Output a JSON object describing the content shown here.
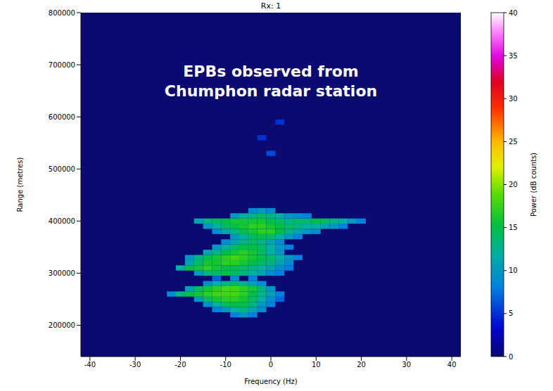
{
  "chart_data": {
    "type": "heatmap",
    "title": "Rx: 1",
    "annotation": [
      "EPBs observed from",
      "Chumphon radar station"
    ],
    "x_label": "Frequency (Hz)",
    "y_label": "Range (metres)",
    "xlim": [
      -42,
      42
    ],
    "xticks": [
      -40,
      -30,
      -20,
      -10,
      0,
      10,
      20,
      30,
      40
    ],
    "ylim": [
      140000,
      800000
    ],
    "yticks": [
      200000,
      300000,
      400000,
      500000,
      600000,
      700000,
      800000
    ],
    "grid": false,
    "color_label": "Power (dB counts)",
    "color_range": [
      0,
      40
    ],
    "color_ticks": [
      0,
      5,
      10,
      15,
      20,
      25,
      30,
      35,
      40
    ],
    "cells": [
      [
        -8,
        220000,
        8
      ],
      [
        -6,
        220000,
        10
      ],
      [
        -4,
        220000,
        8
      ],
      [
        -12,
        230000,
        8
      ],
      [
        -10,
        230000,
        10
      ],
      [
        -8,
        230000,
        12
      ],
      [
        -6,
        230000,
        13
      ],
      [
        -4,
        230000,
        11
      ],
      [
        -2,
        230000,
        9
      ],
      [
        -14,
        240000,
        9
      ],
      [
        -12,
        240000,
        12
      ],
      [
        -10,
        240000,
        14
      ],
      [
        -8,
        240000,
        15
      ],
      [
        -6,
        240000,
        15
      ],
      [
        -4,
        240000,
        13
      ],
      [
        -2,
        240000,
        10
      ],
      [
        0,
        240000,
        8
      ],
      [
        -16,
        250000,
        10
      ],
      [
        -14,
        250000,
        14
      ],
      [
        -12,
        250000,
        16
      ],
      [
        -10,
        250000,
        17
      ],
      [
        -8,
        250000,
        17
      ],
      [
        -6,
        250000,
        16
      ],
      [
        -4,
        250000,
        14
      ],
      [
        -2,
        250000,
        12
      ],
      [
        0,
        250000,
        9
      ],
      [
        2,
        250000,
        7
      ],
      [
        -22,
        260000,
        9
      ],
      [
        -20,
        260000,
        13
      ],
      [
        -18,
        260000,
        15
      ],
      [
        -16,
        260000,
        16
      ],
      [
        -14,
        260000,
        17
      ],
      [
        -12,
        260000,
        18
      ],
      [
        -10,
        260000,
        18
      ],
      [
        -8,
        260000,
        18
      ],
      [
        -6,
        260000,
        17
      ],
      [
        -4,
        260000,
        15
      ],
      [
        -2,
        260000,
        13
      ],
      [
        0,
        260000,
        11
      ],
      [
        2,
        260000,
        8
      ],
      [
        -18,
        270000,
        11
      ],
      [
        -16,
        270000,
        14
      ],
      [
        -14,
        270000,
        16
      ],
      [
        -12,
        270000,
        17
      ],
      [
        -10,
        270000,
        18
      ],
      [
        -8,
        270000,
        18
      ],
      [
        -6,
        270000,
        17
      ],
      [
        -4,
        270000,
        16
      ],
      [
        -2,
        270000,
        13
      ],
      [
        0,
        270000,
        10
      ],
      [
        -14,
        280000,
        9
      ],
      [
        -12,
        280000,
        12
      ],
      [
        -10,
        280000,
        13
      ],
      [
        -8,
        280000,
        14
      ],
      [
        -6,
        280000,
        13
      ],
      [
        -4,
        280000,
        11
      ],
      [
        -2,
        280000,
        9
      ],
      [
        -12,
        290000,
        7
      ],
      [
        -8,
        290000,
        9
      ],
      [
        -4,
        290000,
        8
      ],
      [
        -16,
        300000,
        10
      ],
      [
        -14,
        300000,
        13
      ],
      [
        -12,
        300000,
        14
      ],
      [
        -10,
        300000,
        15
      ],
      [
        -8,
        300000,
        14
      ],
      [
        -6,
        300000,
        13
      ],
      [
        -4,
        300000,
        12
      ],
      [
        -2,
        300000,
        11
      ],
      [
        0,
        300000,
        9
      ],
      [
        2,
        300000,
        8
      ],
      [
        -20,
        310000,
        12
      ],
      [
        -18,
        310000,
        15
      ],
      [
        -16,
        310000,
        16
      ],
      [
        -14,
        310000,
        17
      ],
      [
        -12,
        310000,
        16
      ],
      [
        -10,
        310000,
        15
      ],
      [
        -8,
        310000,
        15
      ],
      [
        -6,
        310000,
        14
      ],
      [
        -4,
        310000,
        13
      ],
      [
        -2,
        310000,
        12
      ],
      [
        0,
        310000,
        11
      ],
      [
        2,
        310000,
        9
      ],
      [
        4,
        310000,
        8
      ],
      [
        -18,
        320000,
        11
      ],
      [
        -16,
        320000,
        14
      ],
      [
        -14,
        320000,
        16
      ],
      [
        -12,
        320000,
        16
      ],
      [
        -10,
        320000,
        17
      ],
      [
        -8,
        320000,
        17
      ],
      [
        -6,
        320000,
        16
      ],
      [
        -4,
        320000,
        15
      ],
      [
        -2,
        320000,
        14
      ],
      [
        0,
        320000,
        13
      ],
      [
        2,
        320000,
        11
      ],
      [
        4,
        320000,
        9
      ],
      [
        -18,
        330000,
        10
      ],
      [
        -16,
        330000,
        13
      ],
      [
        -14,
        330000,
        15
      ],
      [
        -12,
        330000,
        16
      ],
      [
        -10,
        330000,
        17
      ],
      [
        -8,
        330000,
        18
      ],
      [
        -6,
        330000,
        17
      ],
      [
        -4,
        330000,
        16
      ],
      [
        -2,
        330000,
        15
      ],
      [
        0,
        330000,
        14
      ],
      [
        2,
        330000,
        12
      ],
      [
        4,
        330000,
        10
      ],
      [
        6,
        330000,
        8
      ],
      [
        -14,
        340000,
        11
      ],
      [
        -12,
        340000,
        13
      ],
      [
        -10,
        340000,
        15
      ],
      [
        -8,
        340000,
        16
      ],
      [
        -6,
        340000,
        17
      ],
      [
        -4,
        340000,
        16
      ],
      [
        -2,
        340000,
        14
      ],
      [
        0,
        340000,
        12
      ],
      [
        2,
        340000,
        10
      ],
      [
        -12,
        350000,
        10
      ],
      [
        -10,
        350000,
        12
      ],
      [
        -8,
        350000,
        14
      ],
      [
        -6,
        350000,
        15
      ],
      [
        -4,
        350000,
        15
      ],
      [
        -2,
        350000,
        14
      ],
      [
        0,
        350000,
        12
      ],
      [
        2,
        350000,
        10
      ],
      [
        4,
        350000,
        8
      ],
      [
        -10,
        360000,
        9
      ],
      [
        -8,
        360000,
        11
      ],
      [
        -6,
        360000,
        13
      ],
      [
        -4,
        360000,
        14
      ],
      [
        -2,
        360000,
        13
      ],
      [
        0,
        360000,
        11
      ],
      [
        2,
        360000,
        9
      ],
      [
        -8,
        370000,
        10
      ],
      [
        -6,
        370000,
        12
      ],
      [
        -4,
        370000,
        14
      ],
      [
        -2,
        370000,
        15
      ],
      [
        0,
        370000,
        14
      ],
      [
        2,
        370000,
        12
      ],
      [
        4,
        370000,
        10
      ],
      [
        6,
        370000,
        8
      ],
      [
        -12,
        380000,
        9
      ],
      [
        -10,
        380000,
        11
      ],
      [
        -8,
        380000,
        13
      ],
      [
        -6,
        380000,
        15
      ],
      [
        -4,
        380000,
        16
      ],
      [
        -2,
        380000,
        17
      ],
      [
        0,
        380000,
        17
      ],
      [
        2,
        380000,
        15
      ],
      [
        4,
        380000,
        13
      ],
      [
        6,
        380000,
        11
      ],
      [
        8,
        380000,
        10
      ],
      [
        10,
        380000,
        9
      ],
      [
        -14,
        390000,
        10
      ],
      [
        -12,
        390000,
        12
      ],
      [
        -10,
        390000,
        14
      ],
      [
        -8,
        390000,
        15
      ],
      [
        -6,
        390000,
        16
      ],
      [
        -4,
        390000,
        17
      ],
      [
        -2,
        390000,
        17
      ],
      [
        0,
        390000,
        16
      ],
      [
        2,
        390000,
        15
      ],
      [
        4,
        390000,
        14
      ],
      [
        6,
        390000,
        13
      ],
      [
        8,
        390000,
        12
      ],
      [
        10,
        390000,
        12
      ],
      [
        12,
        390000,
        11
      ],
      [
        14,
        390000,
        10
      ],
      [
        16,
        390000,
        8
      ],
      [
        -16,
        400000,
        11
      ],
      [
        -14,
        400000,
        13
      ],
      [
        -12,
        400000,
        14
      ],
      [
        -10,
        400000,
        15
      ],
      [
        -8,
        400000,
        16
      ],
      [
        -6,
        400000,
        16
      ],
      [
        -4,
        400000,
        16
      ],
      [
        -2,
        400000,
        16
      ],
      [
        0,
        400000,
        15
      ],
      [
        2,
        400000,
        14
      ],
      [
        4,
        400000,
        13
      ],
      [
        6,
        400000,
        14
      ],
      [
        8,
        400000,
        14
      ],
      [
        10,
        400000,
        15
      ],
      [
        12,
        400000,
        14
      ],
      [
        14,
        400000,
        13
      ],
      [
        16,
        400000,
        12
      ],
      [
        18,
        400000,
        10
      ],
      [
        20,
        400000,
        8
      ],
      [
        -8,
        410000,
        10
      ],
      [
        -6,
        410000,
        12
      ],
      [
        -4,
        410000,
        13
      ],
      [
        -2,
        410000,
        14
      ],
      [
        0,
        410000,
        13
      ],
      [
        2,
        410000,
        12
      ],
      [
        4,
        410000,
        10
      ],
      [
        6,
        410000,
        9
      ],
      [
        8,
        410000,
        8
      ],
      [
        -4,
        420000,
        9
      ],
      [
        -2,
        420000,
        10
      ],
      [
        0,
        420000,
        9
      ],
      [
        0,
        530000,
        6
      ],
      [
        -2,
        560000,
        5
      ],
      [
        2,
        590000,
        5
      ]
    ]
  }
}
